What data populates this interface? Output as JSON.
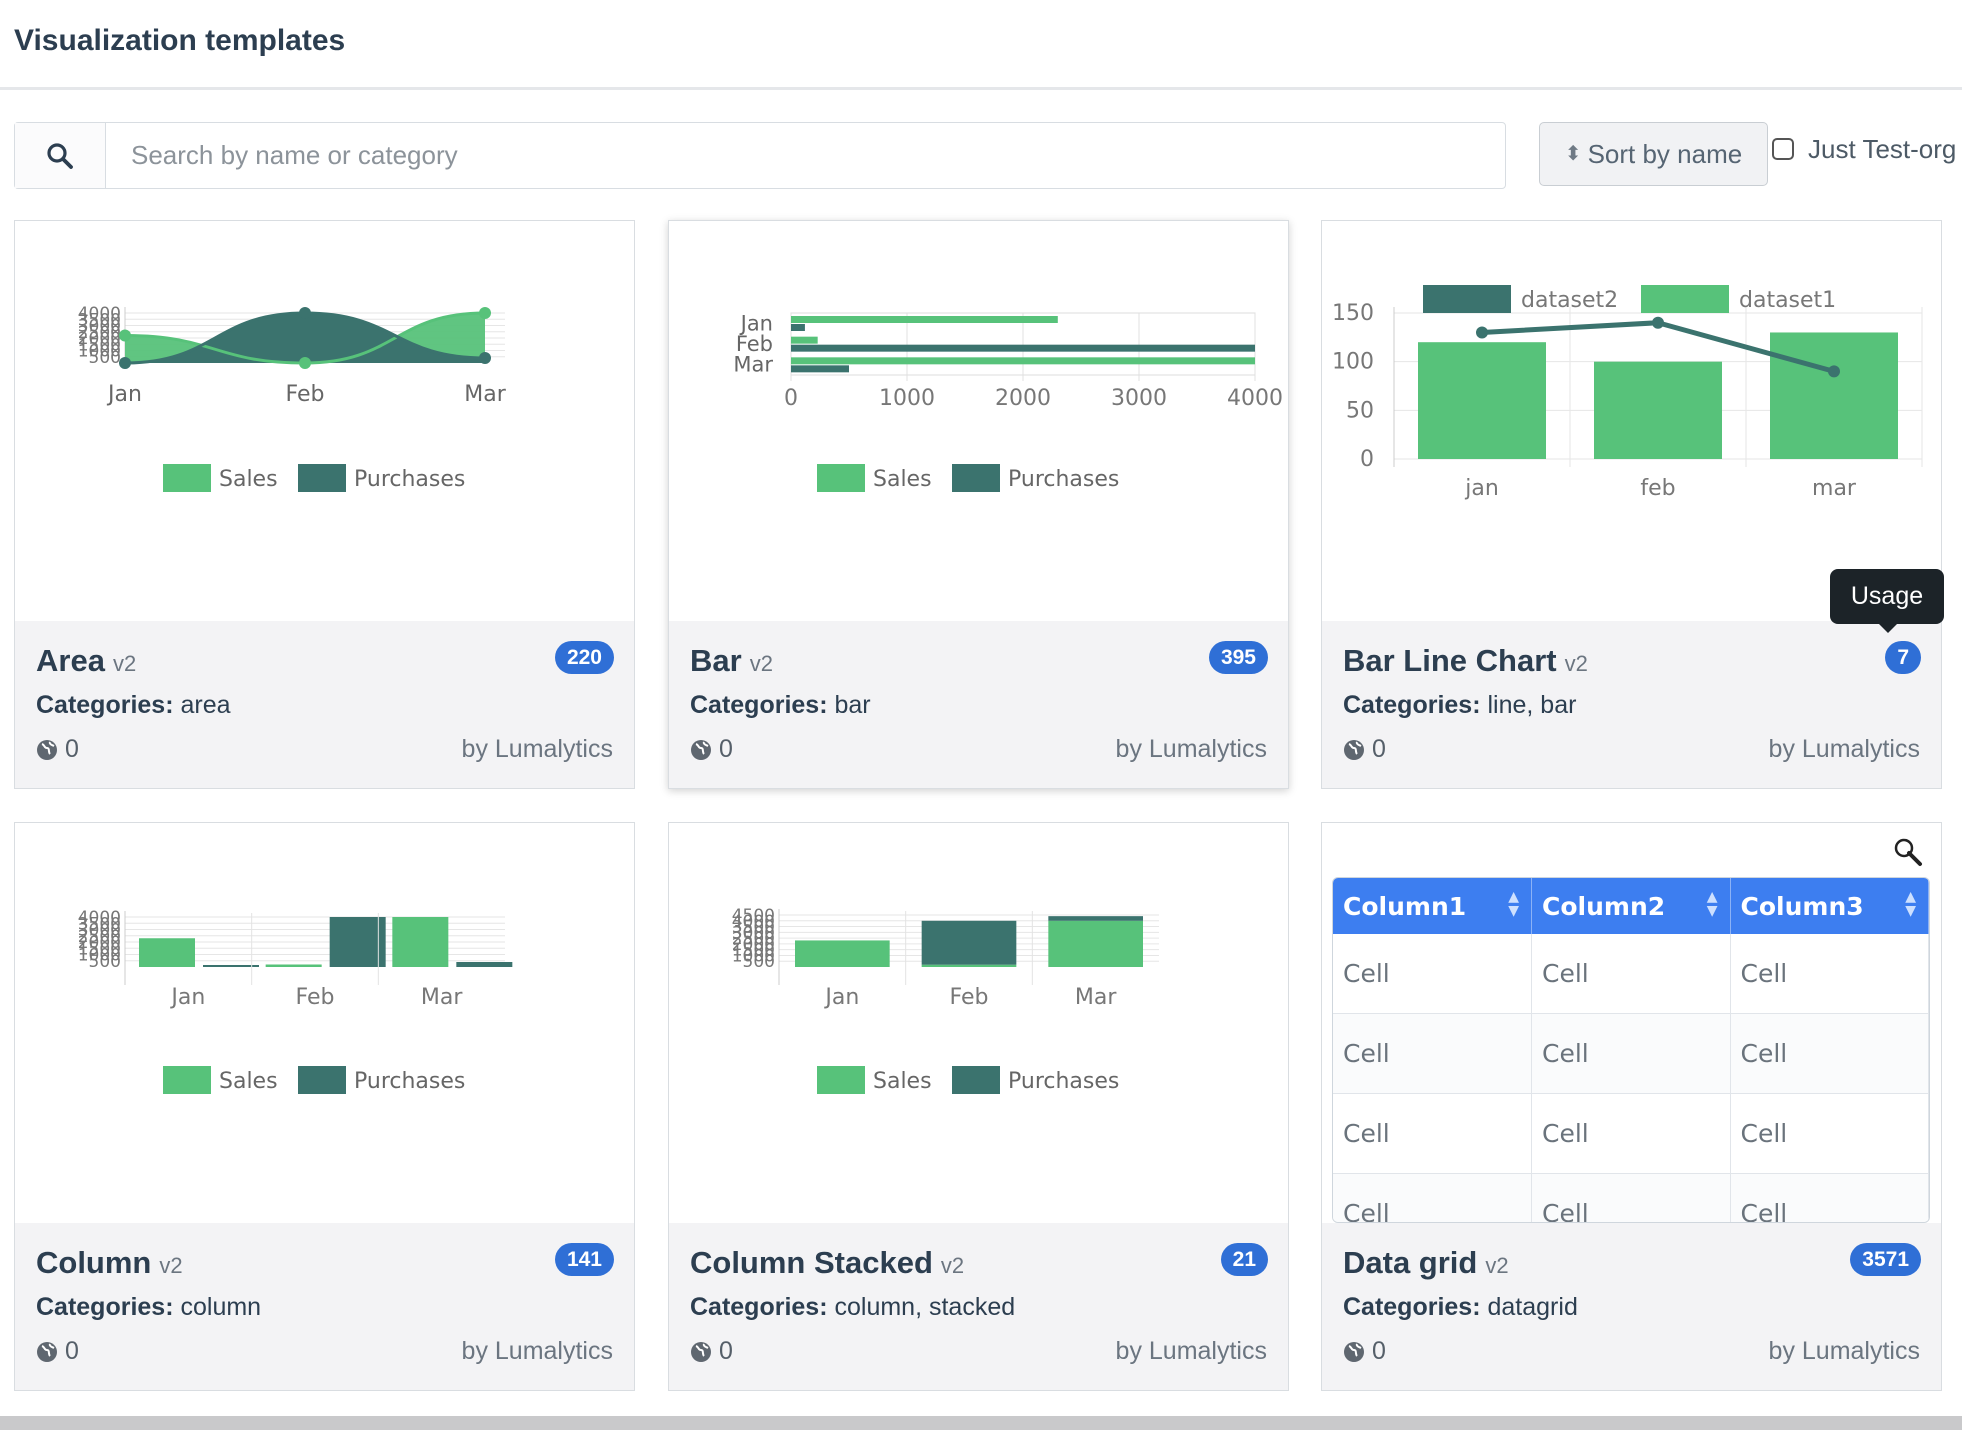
{
  "header": {
    "title": "Visualization templates"
  },
  "search": {
    "placeholder": "Search by name or category"
  },
  "sort": {
    "label": "Sort by name"
  },
  "filter": {
    "label": "Just Test-org"
  },
  "colors": {
    "sales": "#57c27a",
    "purchases": "#3b736e",
    "badge": "#2f6fd6",
    "grid_header": "#3d7ef0"
  },
  "tooltip": {
    "text": "Usage"
  },
  "cards": [
    {
      "title": "Area",
      "version": "v2",
      "badge": "220",
      "categories_label": "Categories:",
      "categories": "area",
      "shares": "0",
      "author": "by Lumalytics"
    },
    {
      "title": "Bar",
      "version": "v2",
      "badge": "395",
      "categories_label": "Categories:",
      "categories": "bar",
      "shares": "0",
      "author": "by Lumalytics"
    },
    {
      "title": "Bar Line Chart",
      "version": "v2",
      "badge": "7",
      "categories_label": "Categories:",
      "categories": "line, bar",
      "shares": "0",
      "author": "by Lumalytics"
    },
    {
      "title": "Column",
      "version": "v2",
      "badge": "141",
      "categories_label": "Categories:",
      "categories": "column",
      "shares": "0",
      "author": "by Lumalytics"
    },
    {
      "title": "Column Stacked",
      "version": "v2",
      "badge": "21",
      "categories_label": "Categories:",
      "categories": "column, stacked",
      "shares": "0",
      "author": "by Lumalytics"
    },
    {
      "title": "Data grid",
      "version": "v2",
      "badge": "3571",
      "categories_label": "Categories:",
      "categories": "datagrid",
      "shares": "0",
      "author": "by Lumalytics"
    }
  ],
  "chart_data": [
    {
      "type": "area",
      "categories": [
        "Jan",
        "Feb",
        "Mar"
      ],
      "series": [
        {
          "name": "Sales",
          "values": [
            2200,
            0,
            4000
          ]
        },
        {
          "name": "Purchases",
          "values": [
            0,
            4000,
            400
          ]
        }
      ],
      "ylim": [
        0,
        4000
      ],
      "yticks": [
        "500",
        "1000",
        "1500",
        "2000",
        "2500",
        "3000",
        "3500",
        "4000"
      ],
      "legend": "bottom"
    },
    {
      "type": "bar",
      "orientation": "horizontal",
      "categories": [
        "Jan",
        "Feb",
        "Mar"
      ],
      "series": [
        {
          "name": "Sales",
          "values": [
            2300,
            230,
            4000
          ]
        },
        {
          "name": "Purchases",
          "values": [
            120,
            4000,
            500
          ]
        }
      ],
      "xlim": [
        0,
        4000
      ],
      "xticks": [
        "0",
        "1000",
        "2000",
        "3000",
        "4000"
      ],
      "legend": "bottom"
    },
    {
      "type": "bar",
      "categories": [
        "jan",
        "feb",
        "mar"
      ],
      "series": [
        {
          "name": "dataset1",
          "type": "bar",
          "values": [
            120,
            100,
            130
          ]
        },
        {
          "name": "dataset2",
          "type": "line",
          "values": [
            130,
            140,
            90
          ]
        }
      ],
      "ylim": [
        0,
        150
      ],
      "yticks": [
        "0",
        "50",
        "100",
        "150"
      ],
      "legend": "top"
    },
    {
      "type": "bar",
      "categories": [
        "Jan",
        "Feb",
        "Mar"
      ],
      "series": [
        {
          "name": "Sales",
          "values": [
            2300,
            200,
            4000
          ]
        },
        {
          "name": "Purchases",
          "values": [
            50,
            4000,
            400
          ]
        }
      ],
      "ylim": [
        0,
        4000
      ],
      "yticks": [
        "500",
        "1000",
        "1500",
        "2000",
        "2500",
        "3000",
        "3500",
        "4000"
      ],
      "legend": "bottom"
    },
    {
      "type": "bar",
      "stacked": true,
      "categories": [
        "Jan",
        "Feb",
        "Mar"
      ],
      "series": [
        {
          "name": "Sales",
          "values": [
            2300,
            200,
            4000
          ]
        },
        {
          "name": "Purchases",
          "values": [
            0,
            3800,
            400
          ]
        }
      ],
      "ylim": [
        0,
        4500
      ],
      "yticks": [
        "500",
        "1000",
        "1500",
        "2000",
        "2500",
        "3000",
        "3500",
        "4000",
        "4500"
      ],
      "legend": "bottom"
    },
    {
      "type": "table",
      "columns": [
        "Column1",
        "Column2",
        "Column3"
      ],
      "rows": [
        [
          "Cell",
          "Cell",
          "Cell"
        ],
        [
          "Cell",
          "Cell",
          "Cell"
        ],
        [
          "Cell",
          "Cell",
          "Cell"
        ],
        [
          "Cell",
          "Cell",
          "Cell"
        ]
      ]
    }
  ]
}
